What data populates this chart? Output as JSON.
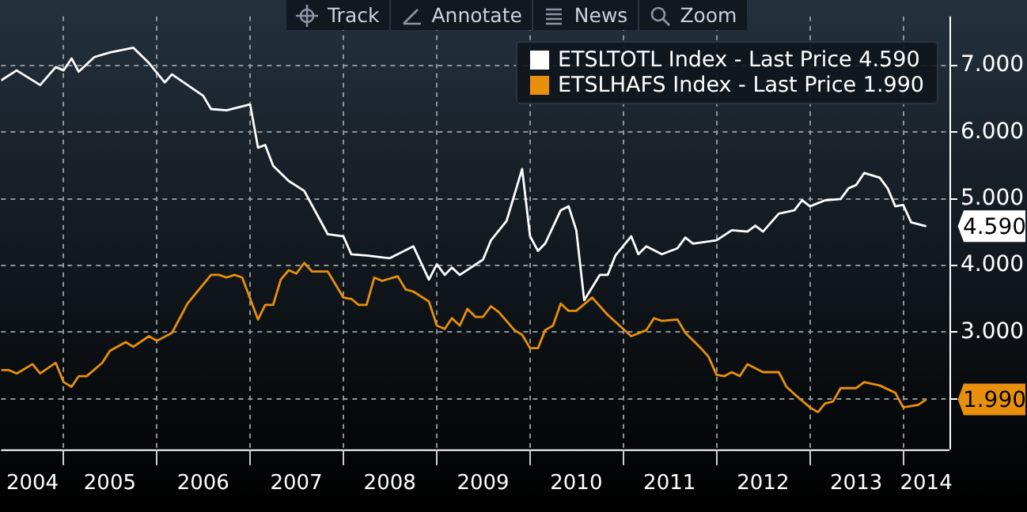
{
  "chart_data": {
    "type": "line",
    "legend": "top right",
    "grid": true,
    "marker": "none",
    "line_style": "solid",
    "xlim": [
      "2004-05",
      "2014-07"
    ],
    "ylim": [
      1.24,
      7.74
    ],
    "xticks": [
      {
        "value": "2004-09",
        "label": "2004"
      },
      {
        "value": "2005-07",
        "label": "2005"
      },
      {
        "value": "2006-07",
        "label": "2006"
      },
      {
        "value": "2007-07",
        "label": "2007"
      },
      {
        "value": "2008-07",
        "label": "2008"
      },
      {
        "value": "2009-07",
        "label": "2009"
      },
      {
        "value": "2010-07",
        "label": "2010"
      },
      {
        "value": "2011-07",
        "label": "2011"
      },
      {
        "value": "2012-07",
        "label": "2012"
      },
      {
        "value": "2013-07",
        "label": "2013"
      },
      {
        "value": "2014-04",
        "label": "2014"
      },
      {
        "value": "2005-01",
        "label": null
      },
      {
        "value": "2006-01",
        "label": null
      },
      {
        "value": "2007-01",
        "label": null
      },
      {
        "value": "2008-01",
        "label": null
      },
      {
        "value": "2009-01",
        "label": null
      },
      {
        "value": "2010-01",
        "label": null
      },
      {
        "value": "2011-01",
        "label": null
      },
      {
        "value": "2012-01",
        "label": null
      },
      {
        "value": "2013-01",
        "label": null
      },
      {
        "value": "2014-01",
        "label": null
      }
    ],
    "yticks": [
      {
        "value": 2,
        "label": null
      },
      {
        "value": 3,
        "label": "3.000"
      },
      {
        "value": 4,
        "label": "4.000"
      },
      {
        "value": 5,
        "label": "5.000"
      },
      {
        "value": 6,
        "label": "6.000"
      },
      {
        "value": 7,
        "label": "7.000"
      }
    ],
    "annotations": [
      "Track",
      "Annotate",
      "News",
      "Zoom",
      {
        "text": "4.590",
        "x": "2014-04",
        "y": 4.59
      },
      {
        "text": "1.990",
        "x": "2014-04",
        "y": 1.99
      }
    ],
    "series": [
      {
        "name": "ETSLTOTL Index - Last Price 4.590",
        "color": "#ffffff",
        "x": [
          "2004-05",
          "2004-07",
          "2004-10",
          "2004-12",
          "2005-01",
          "2005-02",
          "2005-03",
          "2005-05",
          "2005-07",
          "2005-10",
          "2005-12",
          "2006-02",
          "2006-03",
          "2006-07",
          "2006-08",
          "2006-10",
          "2007-01",
          "2007-02",
          "2007-03",
          "2007-04",
          "2007-06",
          "2007-08",
          "2007-11",
          "2008-01",
          "2008-02",
          "2008-04",
          "2008-07",
          "2008-10",
          "2008-12",
          "2009-01",
          "2009-02",
          "2009-03",
          "2009-04",
          "2009-07",
          "2009-08",
          "2009-10",
          "2009-12",
          "2010-01",
          "2010-02",
          "2010-03",
          "2010-05",
          "2010-06",
          "2010-07",
          "2010-08",
          "2010-10",
          "2010-11",
          "2010-12",
          "2011-02",
          "2011-03",
          "2011-04",
          "2011-06",
          "2011-08",
          "2011-09",
          "2011-10",
          "2012-01",
          "2012-03",
          "2012-05",
          "2012-06",
          "2012-07",
          "2012-09",
          "2012-11",
          "2012-12",
          "2013-01",
          "2013-03",
          "2013-05",
          "2013-06",
          "2013-07",
          "2013-08",
          "2013-10",
          "2013-11",
          "2013-12",
          "2014-01",
          "2014-02",
          "2014-04"
        ],
        "values": [
          6.78,
          6.93,
          6.71,
          6.98,
          6.93,
          7.11,
          6.91,
          7.13,
          7.2,
          7.27,
          7.04,
          6.75,
          6.87,
          6.55,
          6.35,
          6.33,
          6.42,
          5.77,
          5.81,
          5.5,
          5.27,
          5.12,
          4.47,
          4.44,
          4.17,
          4.15,
          4.11,
          4.29,
          3.79,
          4.02,
          3.86,
          3.97,
          3.86,
          4.09,
          4.38,
          4.67,
          5.45,
          4.44,
          4.22,
          4.33,
          4.83,
          4.89,
          4.53,
          3.48,
          3.86,
          3.86,
          4.15,
          4.44,
          4.17,
          4.29,
          4.17,
          4.26,
          4.42,
          4.33,
          4.38,
          4.53,
          4.51,
          4.6,
          4.51,
          4.78,
          4.83,
          4.98,
          4.89,
          4.98,
          5.0,
          5.16,
          5.21,
          5.39,
          5.32,
          5.16,
          4.89,
          4.91,
          4.65,
          4.59
        ]
      },
      {
        "name": "ETSLHAFS Index - Last Price 1.990",
        "color": "#e8900c",
        "x": [
          "2004-05",
          "2004-06",
          "2004-07",
          "2004-09",
          "2004-10",
          "2004-12",
          "2005-01",
          "2005-02",
          "2005-03",
          "2005-04",
          "2005-06",
          "2005-07",
          "2005-09",
          "2005-10",
          "2005-12",
          "2006-01",
          "2006-03",
          "2006-05",
          "2006-08",
          "2006-09",
          "2006-10",
          "2006-11",
          "2006-12",
          "2007-02",
          "2007-03",
          "2007-04",
          "2007-05",
          "2007-06",
          "2007-07",
          "2007-08",
          "2007-09",
          "2007-11",
          "2008-01",
          "2008-02",
          "2008-03",
          "2008-04",
          "2008-05",
          "2008-06",
          "2008-08",
          "2008-09",
          "2008-10",
          "2008-12",
          "2009-01",
          "2009-02",
          "2009-03",
          "2009-04",
          "2009-05",
          "2009-06",
          "2009-07",
          "2009-08",
          "2009-09",
          "2009-11",
          "2009-12",
          "2010-01",
          "2010-02",
          "2010-03",
          "2010-04",
          "2010-05",
          "2010-06",
          "2010-07",
          "2010-09",
          "2010-11",
          "2011-02",
          "2011-04",
          "2011-05",
          "2011-06",
          "2011-08",
          "2011-09",
          "2011-11",
          "2011-12",
          "2012-01",
          "2012-02",
          "2012-03",
          "2012-04",
          "2012-05",
          "2012-07",
          "2012-09",
          "2012-10",
          "2012-11",
          "2013-01",
          "2013-02",
          "2013-03",
          "2013-04",
          "2013-05",
          "2013-07",
          "2013-08",
          "2013-10",
          "2013-12",
          "2014-01",
          "2014-03",
          "2014-04"
        ],
        "values": [
          2.43,
          2.43,
          2.38,
          2.52,
          2.38,
          2.54,
          2.25,
          2.18,
          2.34,
          2.34,
          2.54,
          2.72,
          2.85,
          2.78,
          2.94,
          2.87,
          2.99,
          3.43,
          3.86,
          3.86,
          3.82,
          3.86,
          3.82,
          3.19,
          3.41,
          3.41,
          3.79,
          3.93,
          3.88,
          4.04,
          3.91,
          3.91,
          3.52,
          3.5,
          3.41,
          3.41,
          3.82,
          3.77,
          3.84,
          3.64,
          3.61,
          3.46,
          3.1,
          3.05,
          3.21,
          3.1,
          3.35,
          3.23,
          3.23,
          3.39,
          3.3,
          3.03,
          2.96,
          2.76,
          2.76,
          3.03,
          3.1,
          3.43,
          3.32,
          3.32,
          3.52,
          3.26,
          2.94,
          3.03,
          3.21,
          3.17,
          3.19,
          2.99,
          2.76,
          2.63,
          2.36,
          2.34,
          2.4,
          2.34,
          2.52,
          2.4,
          2.4,
          2.18,
          2.07,
          1.87,
          1.8,
          1.93,
          1.96,
          2.16,
          2.16,
          2.25,
          2.2,
          2.09,
          1.87,
          1.91,
          1.99
        ]
      }
    ]
  }
}
